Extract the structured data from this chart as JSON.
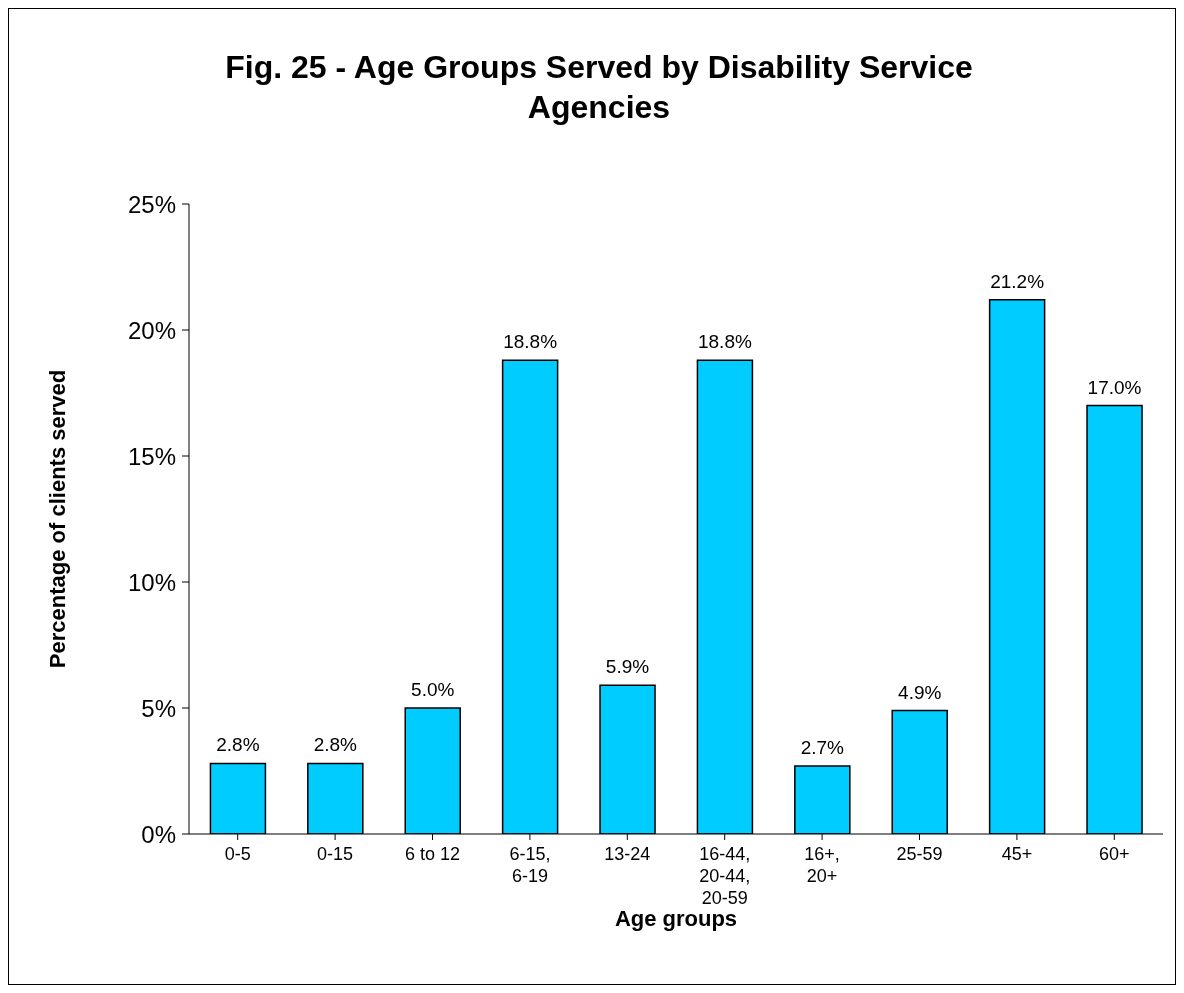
{
  "chart_data": {
    "type": "bar",
    "title": "Fig. 25 - Age Groups Served by Disability Service Agencies",
    "xlabel": "Age groups",
    "ylabel": "Percentage of clients served",
    "categories": [
      "0-5",
      "0-15",
      "6 to 12",
      "6-15, 6-19",
      "13-24",
      "16-44, 20-44, 20-59",
      "16+, 20+",
      "25-59",
      "45+",
      "60+"
    ],
    "values": [
      2.8,
      2.8,
      5.0,
      18.8,
      5.9,
      18.8,
      2.7,
      4.9,
      21.2,
      17.0
    ],
    "value_labels": [
      "2.8%",
      "2.8%",
      "5.0%",
      "18.8%",
      "5.9%",
      "18.8%",
      "2.7%",
      "4.9%",
      "21.2%",
      "17.0%"
    ],
    "color": "#00ccff",
    "ylim": [
      0,
      25
    ],
    "yticks": [
      {
        "value": 0,
        "label": "0%"
      },
      {
        "value": 5,
        "label": "5%"
      },
      {
        "value": 10,
        "label": "10%"
      },
      {
        "value": 15,
        "label": "15%"
      },
      {
        "value": 20,
        "label": "20%"
      },
      {
        "value": 25,
        "label": "25%"
      }
    ],
    "legend": false,
    "grid": false
  }
}
